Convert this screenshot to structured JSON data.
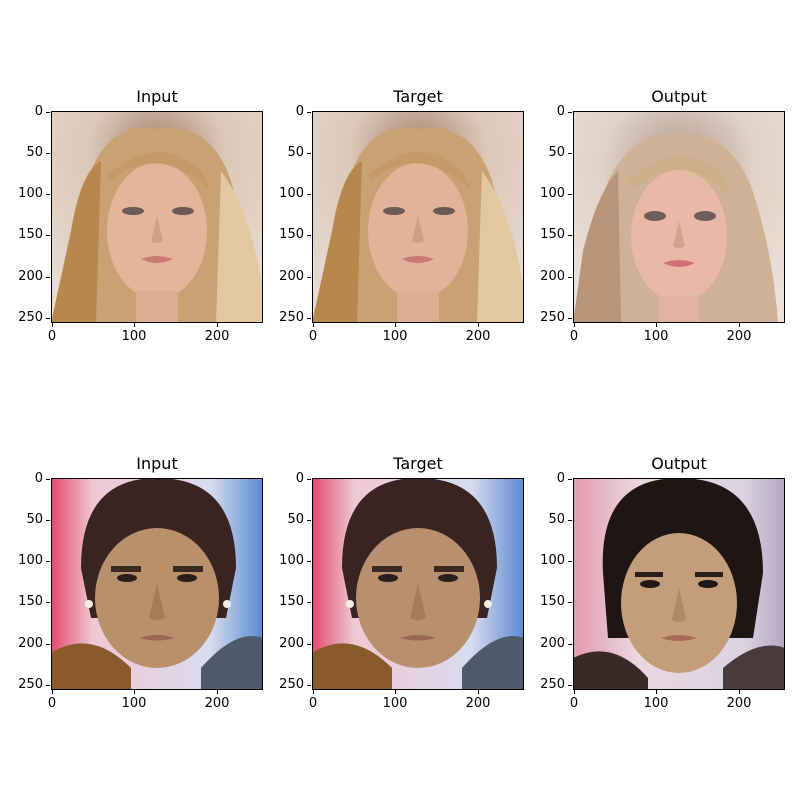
{
  "rows": [
    {
      "panels": [
        {
          "title": "Input",
          "ticks_y": [
            "0",
            "50",
            "100",
            "150",
            "200",
            "250"
          ],
          "ticks_x": [
            "0",
            "100",
            "200"
          ]
        },
        {
          "title": "Target",
          "ticks_y": [
            "0",
            "50",
            "100",
            "150",
            "200",
            "250"
          ],
          "ticks_x": [
            "0",
            "100",
            "200"
          ]
        },
        {
          "title": "Output",
          "ticks_y": [
            "0",
            "50",
            "100",
            "150",
            "200",
            "250"
          ],
          "ticks_x": [
            "0",
            "100",
            "200"
          ]
        }
      ]
    },
    {
      "panels": [
        {
          "title": "Input",
          "ticks_y": [
            "0",
            "50",
            "100",
            "150",
            "200",
            "250"
          ],
          "ticks_x": [
            "0",
            "100",
            "200"
          ]
        },
        {
          "title": "Target",
          "ticks_y": [
            "0",
            "50",
            "100",
            "150",
            "200",
            "250"
          ],
          "ticks_x": [
            "0",
            "100",
            "200"
          ]
        },
        {
          "title": "Output",
          "ticks_y": [
            "0",
            "50",
            "100",
            "150",
            "200",
            "250"
          ],
          "ticks_x": [
            "0",
            "100",
            "200"
          ]
        }
      ]
    }
  ]
}
